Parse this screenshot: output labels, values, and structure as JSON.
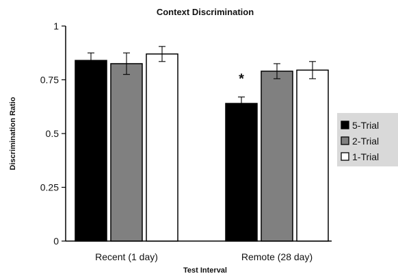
{
  "chart_data": {
    "type": "bar",
    "title": "Context Discrimination",
    "xlabel": "Test Interval",
    "ylabel": "Discrimination Ratio",
    "ylim": [
      0,
      1
    ],
    "yticks": [
      "0",
      "0.25",
      "0.5",
      "0.75",
      "1"
    ],
    "ytick_values": [
      0,
      0.25,
      0.5,
      0.75,
      1
    ],
    "categories": [
      "Recent (1 day)",
      "Remote (28 day)"
    ],
    "series": [
      {
        "name": "5-Trial",
        "color": "#000000",
        "values": [
          0.84,
          0.64
        ],
        "errors": [
          0.035,
          0.03
        ]
      },
      {
        "name": "2-Trial",
        "color": "#808080",
        "values": [
          0.825,
          0.79
        ],
        "errors": [
          0.05,
          0.035
        ]
      },
      {
        "name": "1-Trial",
        "color": "#ffffff",
        "values": [
          0.87,
          0.795
        ],
        "errors": [
          0.035,
          0.04
        ]
      }
    ],
    "annotations": [
      {
        "text": "*",
        "category": 1,
        "series": 0
      }
    ],
    "legend_position": "right",
    "grid": false
  }
}
